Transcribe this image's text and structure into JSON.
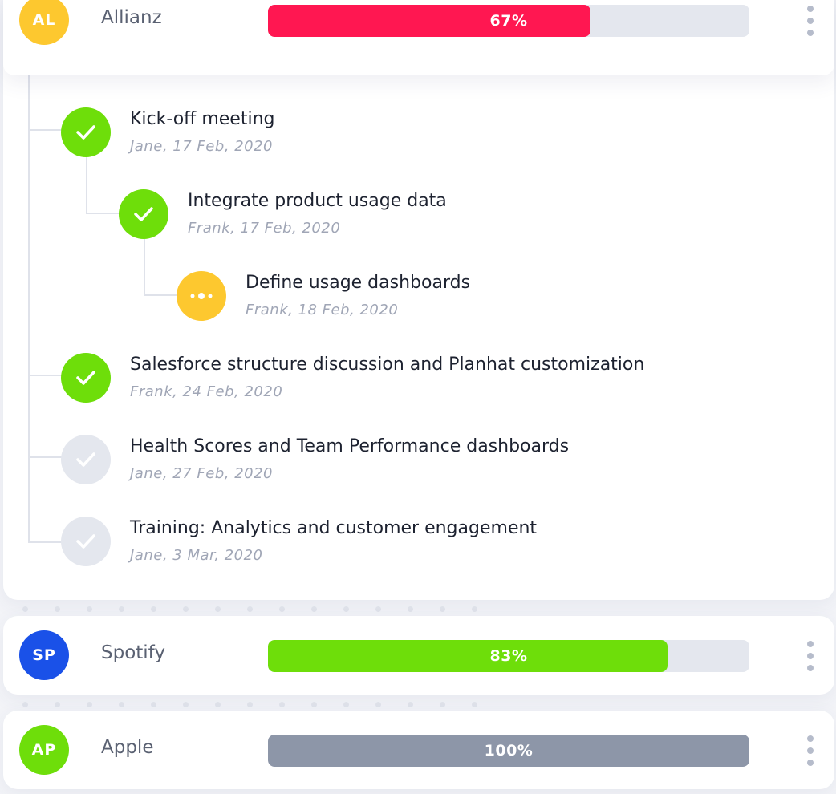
{
  "accounts": [
    {
      "initials": "AL",
      "name": "Allianz",
      "progress_label": "67%",
      "progress": 67,
      "color": "#fdc82f",
      "bar_color": "#ff1751",
      "tasks": [
        {
          "title": "Kick-off meeting",
          "meta": "Jane, 17 Feb, 2020",
          "status": "done"
        },
        {
          "title": "Integrate product usage data",
          "meta": "Frank, 17 Feb, 2020",
          "status": "done"
        },
        {
          "title": "Define usage dashboards",
          "meta": "Frank, 18 Feb, 2020",
          "status": "in-progress"
        },
        {
          "title": "Salesforce structure discussion and Planhat customization",
          "meta": "Frank, 24 Feb, 2020",
          "status": "done"
        },
        {
          "title": "Health Scores and Team Performance dashboards",
          "meta": "Jane, 27 Feb, 2020",
          "status": "pending"
        },
        {
          "title": "Training: Analytics and customer engagement",
          "meta": "Jane, 3 Mar, 2020",
          "status": "pending"
        }
      ]
    },
    {
      "initials": "SP",
      "name": "Spotify",
      "progress_label": "83%",
      "progress": 83,
      "color": "#1a51e8",
      "bar_color": "#6ede0a"
    },
    {
      "initials": "AP",
      "name": "Apple",
      "progress_label": "100%",
      "progress": 100,
      "color": "#6ede0a",
      "bar_color": "#8d96a8"
    }
  ],
  "status_colors": {
    "done": "#6ede0a",
    "in-progress": "#fdc82f",
    "pending": "#e4e7ee"
  },
  "icons": {
    "done": "check-icon",
    "in-progress": "ellipsis-icon",
    "pending": "check-icon",
    "menu": "kebab-menu-icon"
  }
}
